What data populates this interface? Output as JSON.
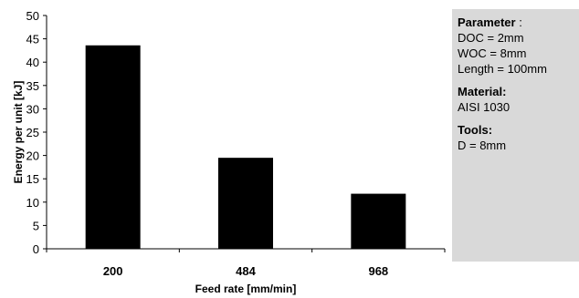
{
  "chart_data": {
    "type": "bar",
    "categories": [
      "200",
      "484",
      "968"
    ],
    "values": [
      43.6,
      19.5,
      11.8
    ],
    "xlabel": "Feed rate [mm/min]",
    "ylabel": "Energy per unit [kJ]",
    "ylim": [
      0,
      50
    ],
    "yticks": [
      "0",
      "5",
      "10",
      "15",
      "20",
      "25",
      "30",
      "35",
      "40",
      "45",
      "50"
    ],
    "bar_color": "#000000",
    "grid": false,
    "legend": "right"
  },
  "panel": {
    "parameter_heading": "Parameter",
    "parameter_suffix": " :",
    "parameter_lines": [
      "DOC = 2mm",
      "WOC = 8mm",
      "Length  = 100mm"
    ],
    "material_heading": "Material:",
    "material_value": "AISI 1030",
    "tools_heading": "Tools:",
    "tools_value": "D = 8mm"
  }
}
